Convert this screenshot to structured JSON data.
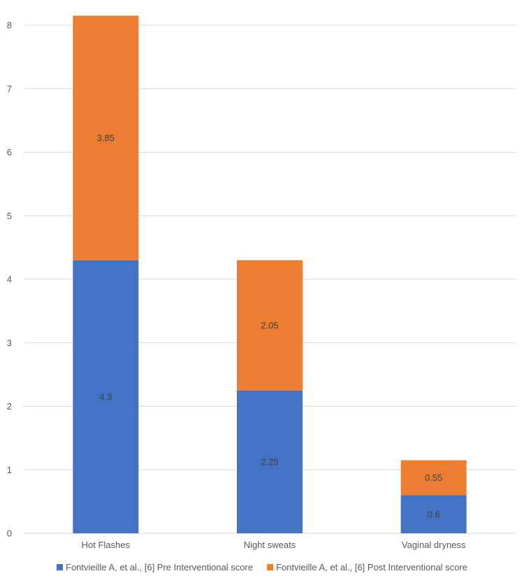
{
  "chart_data": {
    "type": "bar",
    "stacked": true,
    "categories": [
      "Hot Flashes",
      "Night sweats",
      "Vaginal dryness"
    ],
    "series": [
      {
        "name": "Fontvieille A, et al., [6] Pre Interventional score",
        "color": "#4472C4",
        "values": [
          4.3,
          2.25,
          0.6
        ]
      },
      {
        "name": "Fontvieille A, et al., [6] Post Interventional score",
        "color": "#ED7D31",
        "values": [
          3.85,
          2.05,
          0.55
        ]
      }
    ],
    "ylim": [
      0,
      8
    ],
    "yticks": [
      0,
      1,
      2,
      3,
      4,
      5,
      6,
      7,
      8
    ],
    "grid": true,
    "legend_position": "bottom",
    "data_labels": true
  }
}
